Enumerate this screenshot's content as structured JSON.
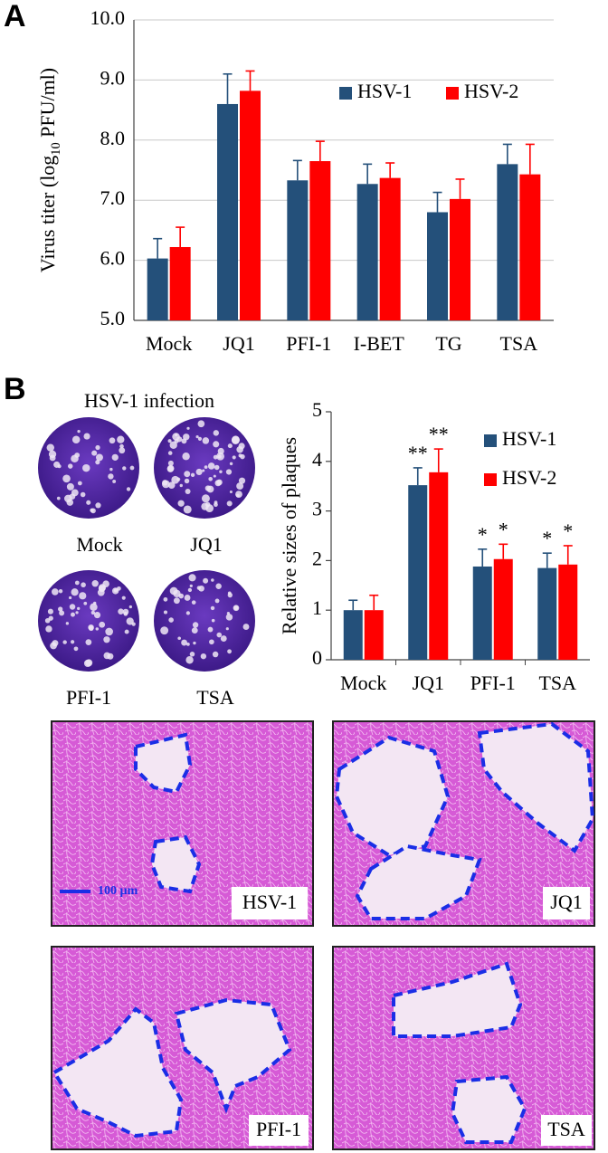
{
  "chart_data": [
    {
      "type": "bar",
      "ylabel": [
        "Virus titer (log",
        "10",
        " PFU/ml)"
      ],
      "categories": [
        "Mock",
        "JQ1",
        "PFI-1",
        "I-BET",
        "TG",
        "TSA"
      ],
      "series": [
        {
          "name": "HSV-1",
          "color": "#24507a",
          "values": [
            6.03,
            8.6,
            7.33,
            7.27,
            6.8,
            7.6
          ],
          "errors": [
            0.33,
            0.5,
            0.33,
            0.33,
            0.33,
            0.33
          ]
        },
        {
          "name": "HSV-2",
          "color": "#ff0000",
          "values": [
            6.22,
            8.82,
            7.65,
            7.37,
            7.02,
            7.43
          ],
          "errors": [
            0.33,
            0.33,
            0.33,
            0.25,
            0.33,
            0.5
          ]
        }
      ],
      "ylim": [
        5,
        10
      ],
      "yticks": [
        {
          "value": 5,
          "label": "5.0"
        },
        {
          "value": 6,
          "label": "6.0"
        },
        {
          "value": 7,
          "label": "7.0"
        },
        {
          "value": 8,
          "label": "8.0"
        },
        {
          "value": 9,
          "label": "9.0"
        },
        {
          "value": 10,
          "label": "10.0"
        }
      ],
      "grid": true,
      "legend": "upper center"
    },
    {
      "type": "bar",
      "ylabel": [
        "Relative sizes of plaques"
      ],
      "categories": [
        "Mock",
        "JQ1",
        "PFI-1",
        "TSA"
      ],
      "series": [
        {
          "name": "HSV-1",
          "color": "#24507a",
          "values": [
            1.0,
            3.52,
            1.88,
            1.85
          ],
          "errors": [
            0.2,
            0.35,
            0.35,
            0.3
          ],
          "significance": [
            null,
            "**",
            "*",
            "*"
          ]
        },
        {
          "name": "HSV-2",
          "color": "#ff0000",
          "values": [
            1.0,
            3.78,
            2.03,
            1.92
          ],
          "errors": [
            0.3,
            0.47,
            0.3,
            0.38
          ],
          "significance": [
            null,
            "**",
            "*",
            "*"
          ]
        }
      ],
      "ylim": [
        0,
        5
      ],
      "yticks": [
        0,
        1,
        2,
        3,
        4,
        5
      ],
      "grid": false,
      "legend": "upper right"
    }
  ],
  "panel_labels": [
    "A",
    "B"
  ],
  "plates": {
    "title": "HSV-1 infection",
    "labels": [
      "Mock",
      "JQ1",
      "PFI-1",
      "TSA"
    ]
  },
  "micrographs": {
    "labels": [
      "HSV-1",
      "JQ1",
      "PFI-1",
      "TSA"
    ],
    "scale_bar": "100 µm"
  }
}
